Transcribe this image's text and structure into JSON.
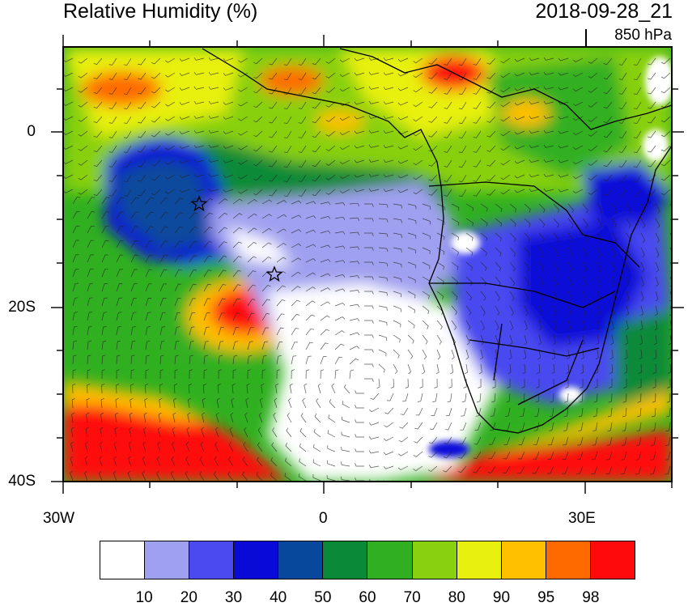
{
  "title": "Relative Humidity (%)",
  "datetime": "2018-09-28_21",
  "level": "850 hPa",
  "axes": {
    "y_labels": [
      "0",
      "20S",
      "40S"
    ],
    "x_labels": [
      "30W",
      "0",
      "30E"
    ]
  },
  "colorbar": {
    "colors": [
      "#ffffff",
      "#a0a0f0",
      "#4a4af0",
      "#0a0ad8",
      "#08489c",
      "#0a8a38",
      "#30b020",
      "#88d010",
      "#e8f010",
      "#ffc000",
      "#ff6a00",
      "#ff0a0a"
    ],
    "labels": [
      "10",
      "20",
      "30",
      "40",
      "50",
      "60",
      "70",
      "80",
      "90",
      "95",
      "98"
    ]
  },
  "markers": [
    {
      "type": "star",
      "name": "star-marker-north"
    },
    {
      "type": "star",
      "name": "star-marker-south"
    }
  ]
}
